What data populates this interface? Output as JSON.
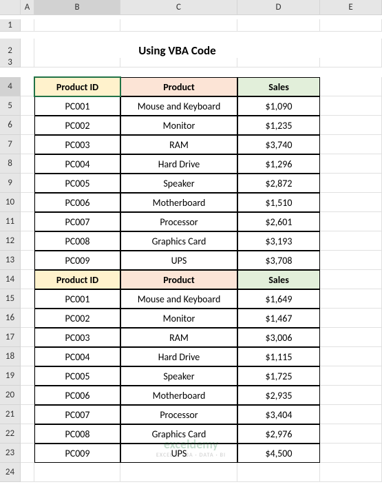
{
  "columns": [
    "",
    "A",
    "B",
    "C",
    "D",
    "E"
  ],
  "selectedColumn": "B",
  "selectedRow": "4",
  "title": "Using VBA Code",
  "headers": {
    "productId": "Product ID",
    "product": "Product",
    "sales": "Sales"
  },
  "headerColors": {
    "productId": "#fff2cc",
    "product": "#fce4d6",
    "sales": "#e2efda"
  },
  "table1": [
    {
      "id": "PC001",
      "product": "Mouse and Keyboard",
      "sales": "$1,090"
    },
    {
      "id": "PC002",
      "product": "Monitor",
      "sales": "$1,235"
    },
    {
      "id": "PC003",
      "product": "RAM",
      "sales": "$3,740"
    },
    {
      "id": "PC004",
      "product": "Hard Drive",
      "sales": "$1,296"
    },
    {
      "id": "PC005",
      "product": "Speaker",
      "sales": "$2,872"
    },
    {
      "id": "PC006",
      "product": "Motherboard",
      "sales": "$1,510"
    },
    {
      "id": "PC007",
      "product": "Processor",
      "sales": "$2,601"
    },
    {
      "id": "PC008",
      "product": "Graphics Card",
      "sales": "$3,193"
    },
    {
      "id": "PC009",
      "product": "UPS",
      "sales": "$3,708"
    }
  ],
  "table2": [
    {
      "id": "PC001",
      "product": "Mouse and Keyboard",
      "sales": "$1,649"
    },
    {
      "id": "PC002",
      "product": "Monitor",
      "sales": "$1,467"
    },
    {
      "id": "PC003",
      "product": "RAM",
      "sales": "$3,006"
    },
    {
      "id": "PC004",
      "product": "Hard Drive",
      "sales": "$1,115"
    },
    {
      "id": "PC005",
      "product": "Speaker",
      "sales": "$1,725"
    },
    {
      "id": "PC006",
      "product": "Motherboard",
      "sales": "$2,935"
    },
    {
      "id": "PC007",
      "product": "Processor",
      "sales": "$3,404"
    },
    {
      "id": "PC008",
      "product": "Graphics Card",
      "sales": "$2,976"
    },
    {
      "id": "PC009",
      "product": "UPS",
      "sales": "$4,500"
    }
  ],
  "watermark": {
    "main": "exceldemy",
    "sub": "EXCEL & VBA · DATA · BI"
  }
}
